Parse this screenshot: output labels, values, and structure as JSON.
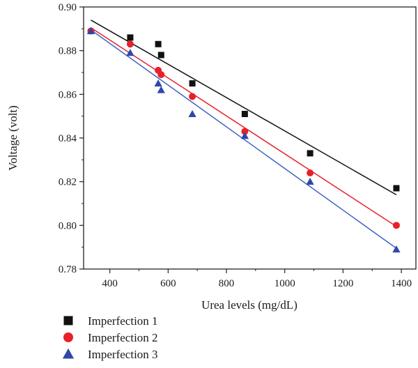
{
  "chart_data": {
    "type": "scatter",
    "xlabel": "Urea levels (mg/dL)",
    "ylabel": "Voltage (volt)",
    "xlim": [
      310,
      1450
    ],
    "ylim": [
      0.78,
      0.9
    ],
    "xticks": [
      400,
      600,
      800,
      1000,
      1200,
      1400
    ],
    "yticks": [
      0.78,
      0.8,
      0.82,
      0.84,
      0.86,
      0.88,
      0.9
    ],
    "xtick_labels": [
      "400",
      "600",
      "800",
      "1000",
      "1200",
      "1400"
    ],
    "ytick_labels": [
      "0.78",
      "0.80",
      "0.82",
      "0.84",
      "0.86",
      "0.88",
      "0.90"
    ],
    "grid": false,
    "legend_position": "bottom-left, below plot",
    "series": [
      {
        "name": "Imperfection 1",
        "marker": "square",
        "color": "#111111",
        "line_color": "#111111",
        "points": [
          [
            470,
            0.886
          ],
          [
            566,
            0.883
          ],
          [
            576,
            0.878
          ],
          [
            683,
            0.865
          ],
          [
            863,
            0.851
          ],
          [
            1087,
            0.833
          ],
          [
            1383,
            0.817
          ]
        ],
        "fit": [
          [
            335,
            0.894
          ],
          [
            1383,
            0.814
          ]
        ]
      },
      {
        "name": "Imperfection 2",
        "marker": "circle",
        "color": "#e8202a",
        "line_color": "#e8202a",
        "points": [
          [
            335,
            0.889
          ],
          [
            470,
            0.883
          ],
          [
            566,
            0.871
          ],
          [
            576,
            0.869
          ],
          [
            683,
            0.859
          ],
          [
            863,
            0.843
          ],
          [
            1087,
            0.824
          ],
          [
            1383,
            0.8
          ]
        ],
        "fit": [
          [
            335,
            0.8905
          ],
          [
            1383,
            0.7995
          ]
        ]
      },
      {
        "name": "Imperfection 3",
        "marker": "triangle",
        "color": "#3047a8",
        "line_color": "#3f63c0",
        "points": [
          [
            335,
            0.889
          ],
          [
            470,
            0.879
          ],
          [
            566,
            0.865
          ],
          [
            576,
            0.862
          ],
          [
            683,
            0.851
          ],
          [
            863,
            0.841
          ],
          [
            1087,
            0.82
          ],
          [
            1383,
            0.789
          ]
        ],
        "fit": [
          [
            335,
            0.8895
          ],
          [
            1383,
            0.7895
          ]
        ]
      }
    ]
  }
}
